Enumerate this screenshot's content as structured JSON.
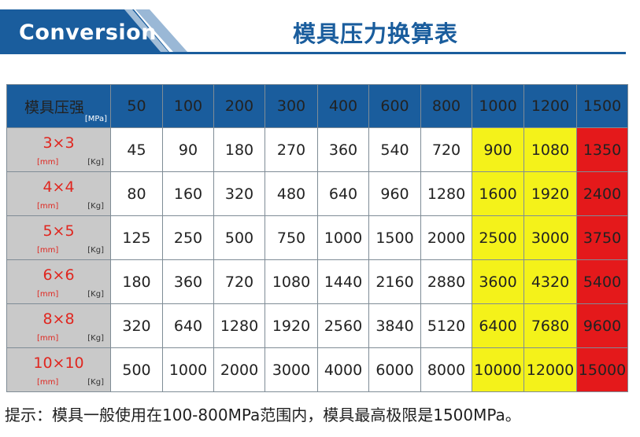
{
  "header": {
    "banner_text": "Conversion",
    "title": "模具压力换算表"
  },
  "table": {
    "corner_label": "模具压强",
    "corner_unit": "[MPa]",
    "columns": [
      "50",
      "100",
      "200",
      "300",
      "400",
      "600",
      "800",
      "1000",
      "1200",
      "1500"
    ],
    "rows": [
      {
        "size": "3×3",
        "mm": "[mm]",
        "kg": "[Kg]",
        "values": [
          "45",
          "90",
          "180",
          "270",
          "360",
          "540",
          "720",
          "900",
          "1080",
          "1350"
        ]
      },
      {
        "size": "4×4",
        "mm": "[mm]",
        "kg": "[Kg]",
        "values": [
          "80",
          "160",
          "320",
          "480",
          "640",
          "960",
          "1280",
          "1600",
          "1920",
          "2400"
        ]
      },
      {
        "size": "5×5",
        "mm": "[mm]",
        "kg": "[Kg]",
        "values": [
          "125",
          "250",
          "500",
          "750",
          "1000",
          "1500",
          "2000",
          "2500",
          "3000",
          "3750"
        ]
      },
      {
        "size": "6×6",
        "mm": "[mm]",
        "kg": "[Kg]",
        "values": [
          "180",
          "360",
          "720",
          "1080",
          "1440",
          "2160",
          "2880",
          "3600",
          "4320",
          "5400"
        ]
      },
      {
        "size": "8×8",
        "mm": "[mm]",
        "kg": "[Kg]",
        "values": [
          "320",
          "640",
          "1280",
          "1920",
          "2560",
          "3840",
          "5120",
          "6400",
          "7680",
          "9600"
        ]
      },
      {
        "size": "10×10",
        "mm": "[mm]",
        "kg": "[Kg]",
        "values": [
          "500",
          "1000",
          "2000",
          "3000",
          "4000",
          "6000",
          "8000",
          "10000",
          "12000",
          "15000"
        ]
      }
    ]
  },
  "colors": {
    "header_blue": "#1a5d9d",
    "row_header_gray": "#c9c9c9",
    "highlight_yellow": "#f4f21a",
    "highlight_red": "#e4191b",
    "size_text_red": "#e0261f"
  },
  "note": "提示：模具一般使用在100-800MPa范围内，模具最高极限是1500MPa。"
}
